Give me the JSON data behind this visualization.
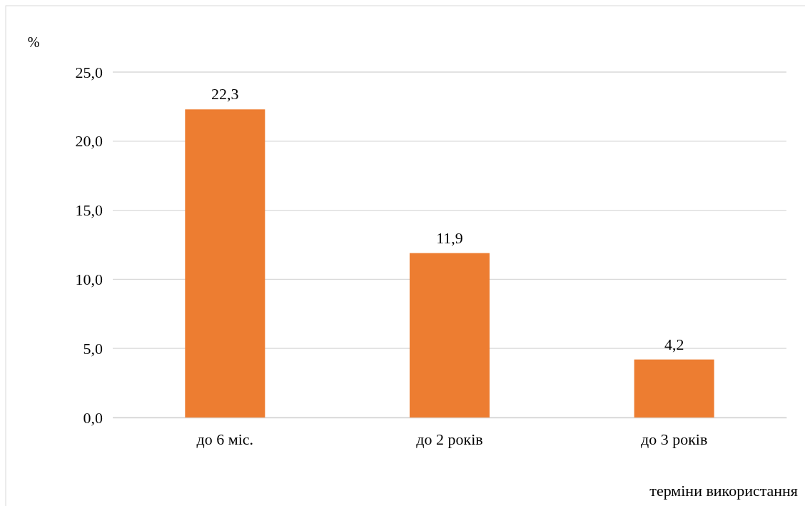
{
  "chart_data": {
    "type": "bar",
    "ylabel": "%",
    "xlabel": "терміни використання",
    "categories": [
      "до 6 міс.",
      "до 2 років",
      "до 3 років"
    ],
    "values": [
      22.3,
      11.9,
      4.2
    ],
    "color": "#ed7d31",
    "value_labels": [
      "22,3",
      "11,9",
      "4,2"
    ],
    "ylim": [
      0,
      25
    ],
    "yticks": [
      {
        "value": 0,
        "label": "0,0"
      },
      {
        "value": 5,
        "label": "5,0"
      },
      {
        "value": 10,
        "label": "10,0"
      },
      {
        "value": 15,
        "label": "15,0"
      },
      {
        "value": 20,
        "label": "20,0"
      },
      {
        "value": 25,
        "label": "25,0"
      }
    ],
    "grid": "y"
  }
}
